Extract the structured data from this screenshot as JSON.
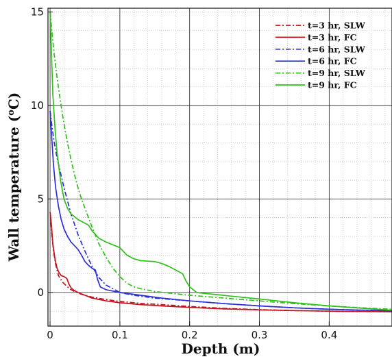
{
  "chart_data": {
    "type": "line",
    "title": "",
    "xlabel": "Depth (m)",
    "ylabel_main": "Wall temperature (",
    "ylabel_sup": "o",
    "ylabel_unit": "C)",
    "xlim": [
      -0.003,
      0.49
    ],
    "ylim": [
      -1.8,
      15.2
    ],
    "xticks": [
      0,
      0.1,
      0.2,
      0.3,
      0.4
    ],
    "xtick_labels": [
      "0",
      "0.1",
      "0.2",
      "0.3",
      "0.4"
    ],
    "yticks": [
      0,
      5,
      10,
      15
    ],
    "ytick_labels": [
      "0",
      "5",
      "10",
      "15"
    ],
    "xgrid": [
      0,
      0.1,
      0.2,
      0.3,
      0.4
    ],
    "ygrid": [
      0,
      5,
      10
    ],
    "grid": "major solid, minor dotted",
    "legend_position": "top-right",
    "series": [
      {
        "name": "t=3 hr, SLW",
        "color": "#c0141c",
        "dash": "dashdot",
        "x": [
          0,
          0.002,
          0.005,
          0.008,
          0.012,
          0.018,
          0.025,
          0.03,
          0.035,
          0.045,
          0.06,
          0.08,
          0.1,
          0.13,
          0.16,
          0.2,
          0.25,
          0.3,
          0.35,
          0.4,
          0.45,
          0.49
        ],
        "y": [
          4.3,
          3.3,
          2.2,
          1.5,
          0.9,
          0.55,
          0.3,
          0.15,
          0.05,
          -0.1,
          -0.25,
          -0.38,
          -0.48,
          -0.58,
          -0.65,
          -0.75,
          -0.85,
          -0.92,
          -0.97,
          -1.0,
          -1.02,
          -1.03
        ]
      },
      {
        "name": "t=3 hr, FC",
        "color": "#c0141c",
        "dash": "solid",
        "x": [
          0,
          0.002,
          0.004,
          0.007,
          0.01,
          0.013,
          0.016,
          0.02,
          0.024,
          0.027,
          0.03,
          0.034,
          0.04,
          0.05,
          0.06,
          0.08,
          0.1,
          0.13,
          0.16,
          0.2,
          0.25,
          0.3,
          0.35,
          0.4,
          0.45,
          0.49
        ],
        "y": [
          4.3,
          3.6,
          2.6,
          1.8,
          1.3,
          1.05,
          0.9,
          0.85,
          0.75,
          0.45,
          0.25,
          0.12,
          0.0,
          -0.15,
          -0.3,
          -0.45,
          -0.55,
          -0.65,
          -0.72,
          -0.8,
          -0.88,
          -0.93,
          -0.97,
          -1.0,
          -1.02,
          -1.03
        ]
      },
      {
        "name": "t=6 hr, SLW",
        "color": "#2b2fd6",
        "dash": "dashdot",
        "x": [
          0,
          0.003,
          0.006,
          0.01,
          0.015,
          0.02,
          0.025,
          0.03,
          0.04,
          0.05,
          0.06,
          0.07,
          0.08,
          0.1,
          0.12,
          0.15,
          0.2,
          0.25,
          0.3,
          0.35,
          0.4,
          0.45,
          0.49
        ],
        "y": [
          9.7,
          8.8,
          8.0,
          7.2,
          6.4,
          5.6,
          4.9,
          4.2,
          3.1,
          2.2,
          1.4,
          0.8,
          0.4,
          0.0,
          -0.15,
          -0.3,
          -0.45,
          -0.6,
          -0.72,
          -0.82,
          -0.9,
          -0.95,
          -0.98
        ]
      },
      {
        "name": "t=6 hr, FC",
        "color": "#2b2fd6",
        "dash": "solid",
        "x": [
          0,
          0.002,
          0.005,
          0.008,
          0.012,
          0.016,
          0.02,
          0.025,
          0.03,
          0.035,
          0.04,
          0.045,
          0.05,
          0.055,
          0.06,
          0.065,
          0.068,
          0.072,
          0.08,
          0.1,
          0.13,
          0.16,
          0.2,
          0.25,
          0.3,
          0.35,
          0.4,
          0.45,
          0.49
        ],
        "y": [
          9.7,
          8.5,
          6.8,
          5.6,
          4.6,
          3.9,
          3.4,
          3.0,
          2.7,
          2.5,
          2.3,
          2.0,
          1.65,
          1.45,
          1.3,
          1.2,
          0.7,
          0.3,
          0.15,
          0.0,
          -0.15,
          -0.3,
          -0.45,
          -0.6,
          -0.72,
          -0.82,
          -0.9,
          -0.95,
          -0.98
        ]
      },
      {
        "name": "t=9 hr, SLW",
        "color": "#2fc01a",
        "dash": "dashdot",
        "x": [
          0,
          0.003,
          0.006,
          0.01,
          0.015,
          0.02,
          0.025,
          0.03,
          0.035,
          0.04,
          0.045,
          0.05,
          0.055,
          0.06,
          0.07,
          0.08,
          0.09,
          0.1,
          0.11,
          0.12,
          0.13,
          0.15,
          0.2,
          0.25,
          0.3,
          0.35,
          0.4,
          0.45,
          0.49
        ],
        "y": [
          15.0,
          13.8,
          12.7,
          11.5,
          10.2,
          9.0,
          8.0,
          7.1,
          6.3,
          5.6,
          5.0,
          4.5,
          4.0,
          3.5,
          2.6,
          1.9,
          1.3,
          0.85,
          0.5,
          0.3,
          0.2,
          0.05,
          -0.15,
          -0.3,
          -0.45,
          -0.6,
          -0.72,
          -0.83,
          -0.9
        ]
      },
      {
        "name": "t=9 hr, FC",
        "color": "#2fc01a",
        "dash": "solid",
        "x": [
          0,
          0.002,
          0.004,
          0.007,
          0.01,
          0.015,
          0.02,
          0.025,
          0.03,
          0.04,
          0.05,
          0.055,
          0.06,
          0.07,
          0.08,
          0.09,
          0.1,
          0.11,
          0.12,
          0.13,
          0.15,
          0.16,
          0.17,
          0.18,
          0.19,
          0.195,
          0.2,
          0.205,
          0.21,
          0.22,
          0.24,
          0.26,
          0.3,
          0.35,
          0.4,
          0.45,
          0.49
        ],
        "y": [
          15.0,
          12.8,
          10.6,
          8.8,
          7.5,
          6.0,
          5.0,
          4.5,
          4.2,
          3.9,
          3.7,
          3.6,
          3.3,
          2.9,
          2.7,
          2.55,
          2.4,
          2.0,
          1.8,
          1.7,
          1.65,
          1.55,
          1.4,
          1.2,
          1.0,
          0.6,
          0.3,
          0.15,
          0.0,
          -0.05,
          -0.12,
          -0.2,
          -0.35,
          -0.55,
          -0.72,
          -0.85,
          -0.95
        ]
      }
    ]
  }
}
